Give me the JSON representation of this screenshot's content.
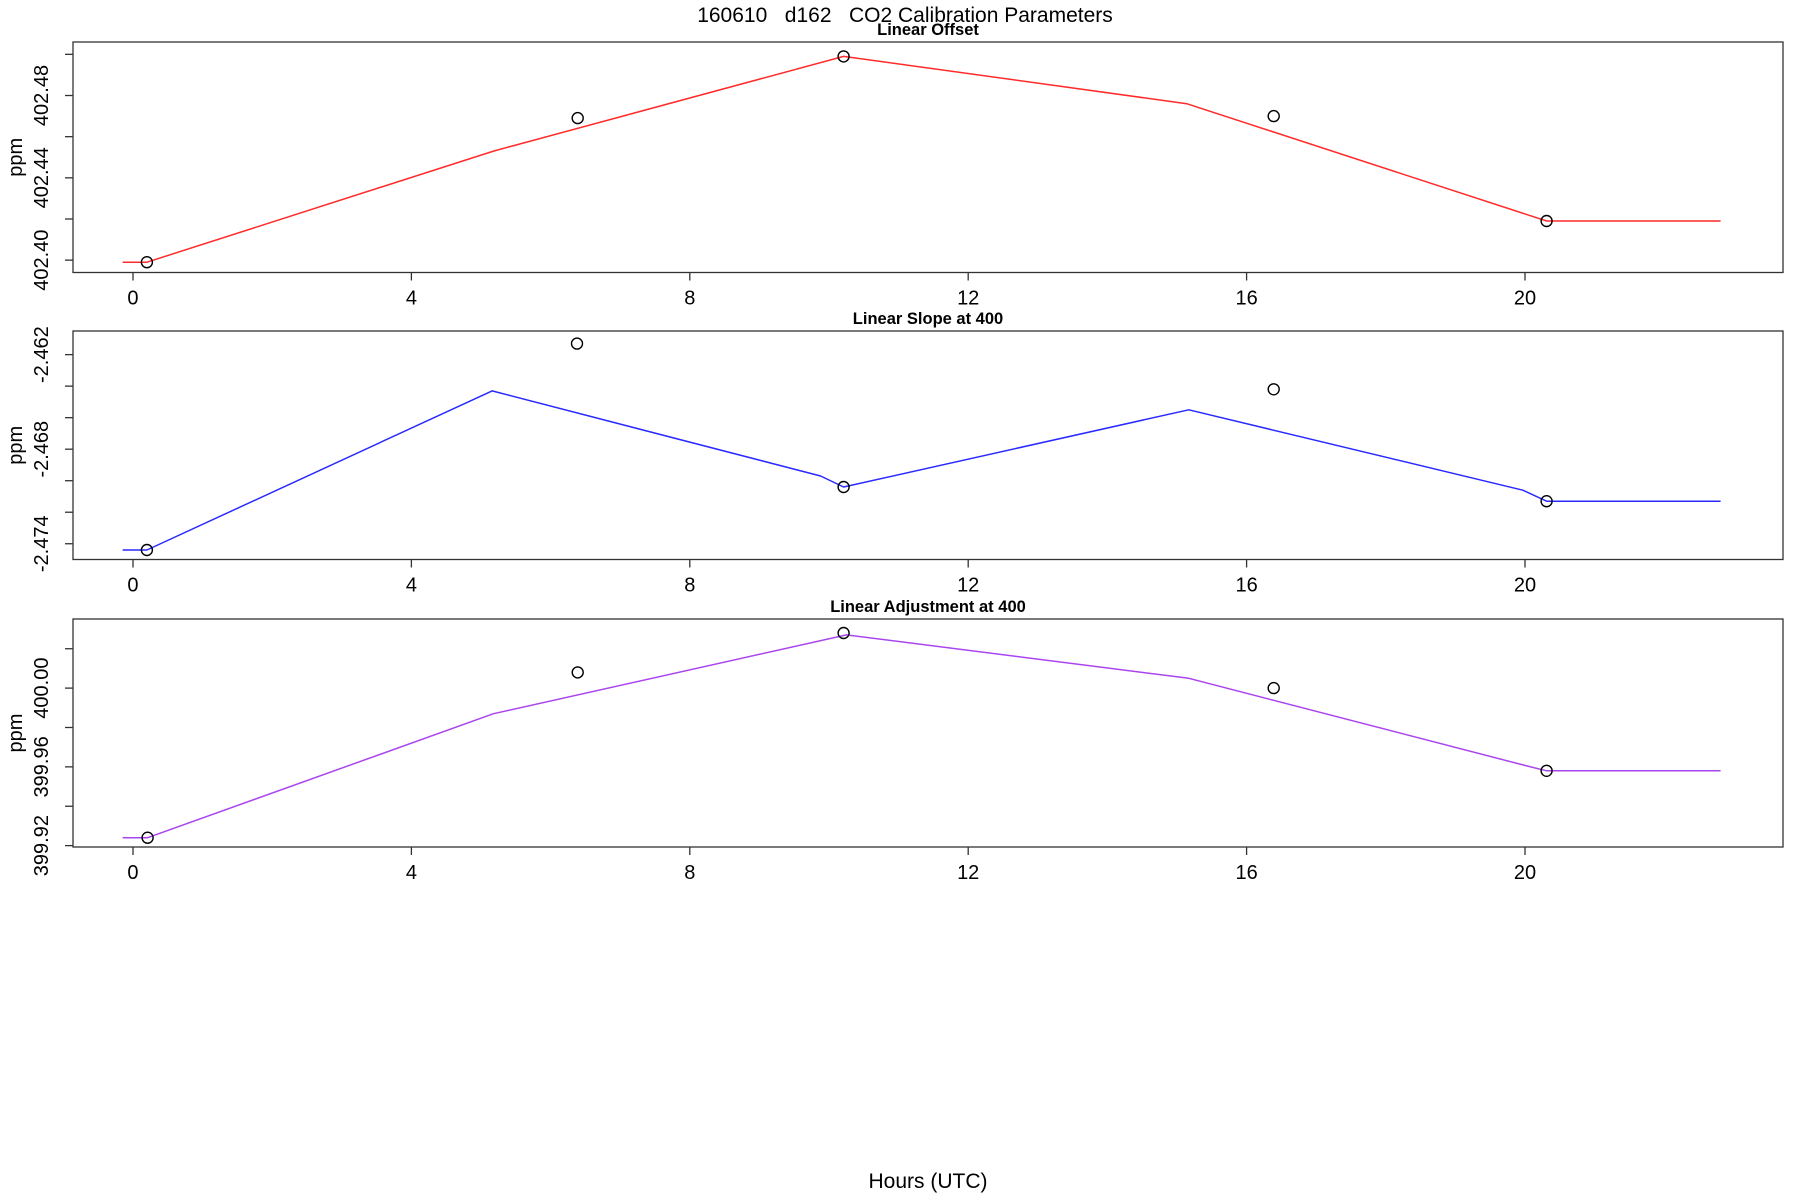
{
  "title": "160610   d162   CO2 Calibration Parameters",
  "xlabel": "Hours (UTC)",
  "chart_data": [
    {
      "type": "line",
      "title": "Linear Offset",
      "ylabel": "ppm",
      "line_color": "#ff2a2a",
      "marker": "open-circle",
      "xlim": [
        -0.862,
        23.707
      ],
      "x_ticks": [
        0,
        4,
        8,
        12,
        16,
        20
      ],
      "ylim": [
        402.394,
        402.506
      ],
      "y_ticks": [
        402.4,
        402.42,
        402.44,
        402.46,
        402.48,
        402.5
      ],
      "y_tick_labels": [
        "402.40",
        "",
        "402.44",
        "",
        "402.48",
        ""
      ],
      "line": {
        "x": [
          -0.15,
          0.2,
          5.18,
          10.21,
          15.14,
          20.31,
          22.81
        ],
        "y": [
          402.399,
          402.399,
          402.453,
          402.499,
          402.476,
          402.419,
          402.419
        ]
      },
      "points": {
        "x": [
          0.2,
          6.39,
          10.21,
          16.39,
          20.31
        ],
        "y": [
          402.399,
          402.469,
          402.499,
          402.47,
          402.419
        ]
      }
    },
    {
      "type": "line",
      "title": "Linear Slope at 400",
      "ylabel": "ppm",
      "line_color": "#2a2aff",
      "marker": "open-circle",
      "xlim": [
        -0.862,
        23.707
      ],
      "x_ticks": [
        0,
        4,
        8,
        12,
        16,
        20
      ],
      "ylim": [
        -2.475,
        -2.4605
      ],
      "y_ticks": [
        -2.474,
        -2.472,
        -2.47,
        -2.468,
        -2.466,
        -2.464,
        -2.462
      ],
      "y_tick_labels": [
        "-2.474",
        "",
        "",
        "-2.468",
        "",
        "",
        "-2.462"
      ],
      "line": {
        "x": [
          -0.15,
          0.2,
          5.16,
          9.88,
          10.21,
          15.17,
          19.97,
          20.31,
          22.81
        ],
        "y": [
          -2.4744,
          -2.4744,
          -2.4643,
          -2.4697,
          -2.4704,
          -2.4655,
          -2.4706,
          -2.4713,
          -2.4713
        ]
      },
      "points": {
        "x": [
          0.2,
          6.38,
          10.21,
          16.39,
          20.31
        ],
        "y": [
          -2.4744,
          -2.4613,
          -2.4704,
          -2.4642,
          -2.4713
        ]
      }
    },
    {
      "type": "line",
      "title": "Linear Adjustment at 400",
      "ylabel": "ppm",
      "line_color": "#aa44ee",
      "marker": "open-circle",
      "xlim": [
        -0.862,
        23.707
      ],
      "x_ticks": [
        0,
        4,
        8,
        12,
        16,
        20
      ],
      "ylim": [
        399.9193,
        400.0351
      ],
      "y_ticks": [
        399.92,
        399.94,
        399.96,
        399.98,
        400.0,
        400.02
      ],
      "y_tick_labels": [
        "399.92",
        "",
        "399.96",
        "",
        "400.00",
        ""
      ],
      "line": {
        "x": [
          -0.15,
          0.21,
          5.18,
          10.25,
          15.17,
          19.97,
          20.31,
          22.81
        ],
        "y": [
          399.924,
          399.924,
          399.987,
          400.027,
          400.005,
          399.961,
          399.958,
          399.958
        ]
      },
      "points": {
        "x": [
          0.21,
          6.39,
          10.21,
          16.39,
          20.31
        ],
        "y": [
          399.924,
          400.008,
          400.028,
          400.0,
          399.958
        ]
      }
    }
  ]
}
